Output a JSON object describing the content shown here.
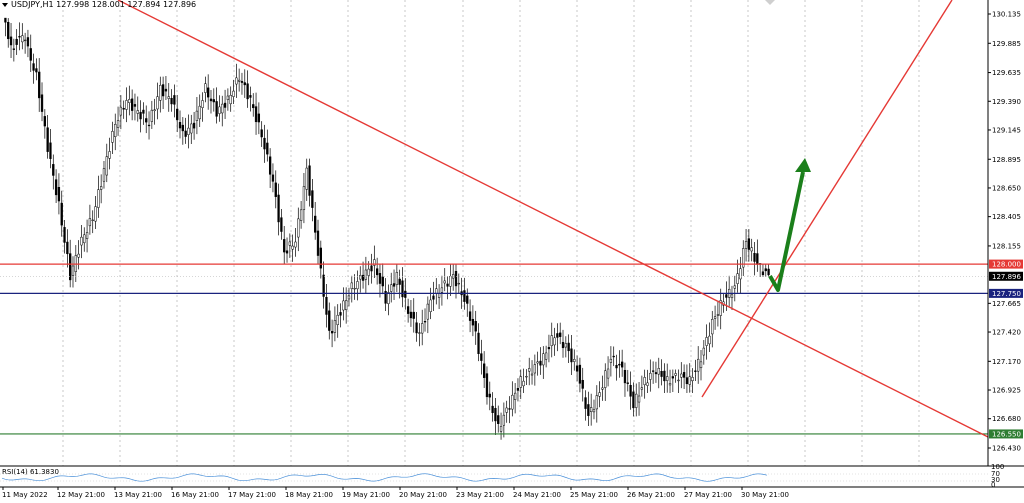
{
  "header": {
    "title": "USDJPY,H1  127.998 128.001 127.894 127.896"
  },
  "price_axis": {
    "labels": [
      "130.135",
      "129.885",
      "129.635",
      "129.390",
      "129.145",
      "128.895",
      "128.650",
      "128.405",
      "128.155",
      "127.665",
      "127.420",
      "127.170",
      "126.925",
      "126.680",
      "126.430"
    ],
    "badges": [
      {
        "name": "resistance",
        "text": "128.000",
        "bg": "#e53935",
        "fg": "#ffffff"
      },
      {
        "name": "current-price",
        "text": "127.896",
        "bg": "#000000",
        "fg": "#ffffff"
      },
      {
        "name": "support-blue",
        "text": "127.750",
        "bg": "#1a237e",
        "fg": "#ffffff"
      },
      {
        "name": "support-green",
        "text": "126.550",
        "bg": "#2e7d32",
        "fg": "#ffffff"
      }
    ]
  },
  "time_axis": {
    "labels": [
      "11 May 2022",
      "12 May 21:00",
      "13 May 21:00",
      "16 May 21:00",
      "17 May 21:00",
      "18 May 21:00",
      "19 May 21:00",
      "20 May 21:00",
      "23 May 21:00",
      "24 May 21:00",
      "25 May 21:00",
      "26 May 21:00",
      "27 May 21:00",
      "30 May 21:00"
    ]
  },
  "rsi": {
    "label": "RSI(14) 61.3830",
    "levels": [
      "100",
      "70",
      "30",
      "0"
    ]
  },
  "colors": {
    "trendline": "#e53935",
    "blue_line": "#1a237e",
    "green_line": "#2e7d32",
    "arrow": "#1b7f1b",
    "grid": "#c8c8c8"
  },
  "chart_data": {
    "type": "candlestick",
    "symbol": "USDJPY",
    "timeframe": "H1",
    "ohlc_last": {
      "open": 127.998,
      "high": 128.001,
      "low": 127.894,
      "close": 127.896
    },
    "ylim": [
      126.43,
      130.135
    ],
    "horizontal_levels": [
      128.0,
      127.896,
      127.75,
      126.55
    ],
    "trend": [
      [
        130.1,
        130.1,
        129.7,
        129.8
      ],
      [
        129.9,
        130.1,
        129.7,
        129.95
      ],
      [
        129.9,
        130.0,
        129.5,
        129.6
      ],
      [
        129.6,
        129.8,
        128.9,
        129.0
      ],
      [
        129.0,
        129.2,
        128.4,
        128.5
      ],
      [
        128.5,
        128.7,
        127.7,
        127.9
      ],
      [
        127.9,
        128.4,
        127.8,
        128.2
      ],
      [
        128.2,
        128.6,
        128.1,
        128.4
      ],
      [
        128.4,
        128.9,
        128.3,
        128.8
      ],
      [
        128.8,
        129.3,
        128.7,
        129.2
      ],
      [
        129.2,
        129.6,
        129.0,
        129.4
      ],
      [
        129.4,
        129.7,
        129.1,
        129.3
      ],
      [
        129.3,
        129.5,
        129.0,
        129.2
      ],
      [
        129.2,
        129.6,
        129.1,
        129.5
      ],
      [
        129.5,
        129.7,
        129.3,
        129.4
      ],
      [
        129.4,
        129.6,
        129.0,
        129.1
      ],
      [
        129.1,
        129.4,
        128.9,
        129.2
      ],
      [
        129.2,
        129.6,
        129.1,
        129.5
      ],
      [
        129.5,
        129.7,
        129.2,
        129.3
      ],
      [
        129.3,
        129.5,
        129.1,
        129.4
      ],
      [
        129.4,
        129.8,
        129.3,
        129.6
      ],
      [
        129.6,
        129.7,
        129.3,
        129.4
      ],
      [
        129.4,
        129.5,
        129.0,
        129.1
      ],
      [
        129.1,
        129.2,
        128.6,
        128.7
      ],
      [
        128.7,
        128.8,
        128.0,
        128.1
      ],
      [
        128.1,
        128.4,
        127.9,
        128.2
      ],
      [
        128.2,
        128.9,
        128.1,
        128.8
      ],
      [
        128.8,
        128.9,
        128.0,
        128.1
      ],
      [
        128.1,
        128.2,
        127.2,
        127.4
      ],
      [
        127.4,
        127.9,
        127.0,
        127.6
      ],
      [
        127.6,
        127.9,
        127.4,
        127.8
      ],
      [
        127.8,
        128.1,
        127.6,
        127.9
      ],
      [
        127.9,
        128.2,
        127.7,
        128.0
      ],
      [
        128.0,
        128.1,
        127.6,
        127.7
      ],
      [
        127.7,
        128.0,
        127.5,
        127.9
      ],
      [
        127.9,
        128.0,
        127.5,
        127.6
      ],
      [
        127.6,
        127.8,
        127.2,
        127.4
      ],
      [
        127.4,
        127.8,
        127.3,
        127.7
      ],
      [
        127.7,
        127.9,
        127.6,
        127.8
      ],
      [
        127.8,
        128.0,
        127.7,
        127.9
      ],
      [
        127.9,
        128.0,
        127.6,
        127.7
      ],
      [
        127.7,
        127.8,
        127.3,
        127.4
      ],
      [
        127.4,
        127.5,
        126.8,
        126.9
      ],
      [
        126.9,
        127.0,
        126.45,
        126.6
      ],
      [
        126.6,
        126.9,
        126.5,
        126.8
      ],
      [
        126.8,
        127.1,
        126.7,
        127.0
      ],
      [
        127.0,
        127.2,
        126.9,
        127.1
      ],
      [
        127.1,
        127.3,
        126.9,
        127.2
      ],
      [
        127.2,
        127.5,
        127.1,
        127.4
      ],
      [
        127.4,
        127.5,
        127.2,
        127.3
      ],
      [
        127.3,
        127.4,
        127.0,
        127.1
      ],
      [
        127.1,
        127.2,
        126.6,
        126.7
      ],
      [
        126.7,
        127.0,
        126.6,
        126.9
      ],
      [
        126.9,
        127.3,
        126.8,
        127.2
      ],
      [
        127.2,
        127.3,
        127.0,
        127.1
      ],
      [
        127.1,
        127.2,
        126.7,
        126.8
      ],
      [
        126.8,
        127.1,
        126.7,
        127.0
      ],
      [
        127.0,
        127.2,
        126.9,
        127.1
      ],
      [
        127.1,
        127.2,
        126.9,
        127.0
      ],
      [
        127.0,
        127.1,
        126.9,
        127.05
      ],
      [
        127.05,
        127.2,
        126.9,
        127.0
      ],
      [
        127.0,
        127.3,
        126.9,
        127.2
      ],
      [
        127.2,
        127.6,
        127.1,
        127.5
      ],
      [
        127.5,
        127.8,
        127.4,
        127.7
      ],
      [
        127.7,
        127.9,
        127.6,
        127.8
      ],
      [
        127.8,
        128.3,
        127.7,
        128.2
      ],
      [
        128.2,
        128.3,
        127.9,
        128.0
      ],
      [
        128.0,
        128.0,
        127.89,
        127.896
      ]
    ]
  }
}
